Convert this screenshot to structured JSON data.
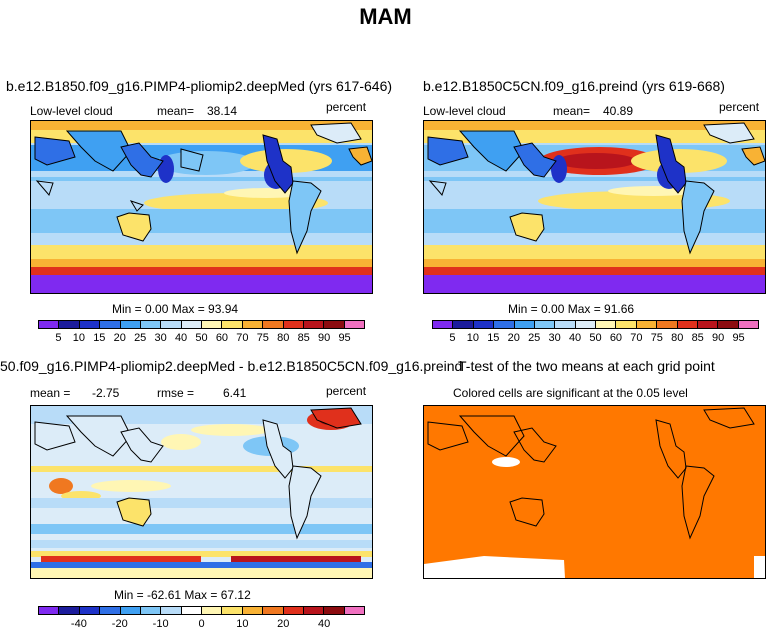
{
  "figure_title": "MAM",
  "chart_data": [
    {
      "type": "heatmap",
      "panel": "top-left",
      "title": "b.e12.B1850.f09_g16.PIMP4-pliomip2.deepMed (yrs 617-646)",
      "left_label": "Low-level cloud",
      "stat_label": "mean=",
      "stat_value": "38.14",
      "units": "percent",
      "min_max_text": "Min =    0.00 Max =   93.94",
      "min": 0.0,
      "max": 93.94,
      "mean": 38.14,
      "colorbar": {
        "levels": [
          "5",
          "10",
          "15",
          "20",
          "25",
          "30",
          "40",
          "50",
          "60",
          "70",
          "75",
          "80",
          "85",
          "90",
          "95"
        ],
        "colors": [
          "#7f2af0",
          "#1c1c9c",
          "#1e32c8",
          "#2f6fe6",
          "#3fa0f2",
          "#7ec6f6",
          "#b8dcf8",
          "#dcecf8",
          "#fff6b4",
          "#fce36a",
          "#f8b234",
          "#f07820",
          "#e0301c",
          "#b8141c",
          "#8c0c10",
          "#f070c0"
        ]
      }
    },
    {
      "type": "heatmap",
      "panel": "top-right",
      "title": "b.e12.B1850C5CN.f09_g16.preind (yrs 619-668)",
      "left_label": "Low-level cloud",
      "stat_label": "mean=",
      "stat_value": "40.89",
      "units": "percent",
      "min_max_text": "Min =    0.00 Max =   91.66",
      "min": 0.0,
      "max": 91.66,
      "mean": 40.89,
      "colorbar": {
        "levels": [
          "5",
          "10",
          "15",
          "20",
          "25",
          "30",
          "40",
          "50",
          "60",
          "70",
          "75",
          "80",
          "85",
          "90",
          "95"
        ],
        "colors": [
          "#7f2af0",
          "#1c1c9c",
          "#1e32c8",
          "#2f6fe6",
          "#3fa0f2",
          "#7ec6f6",
          "#b8dcf8",
          "#dcecf8",
          "#fff6b4",
          "#fce36a",
          "#f8b234",
          "#f07820",
          "#e0301c",
          "#b8141c",
          "#8c0c10",
          "#f070c0"
        ]
      }
    },
    {
      "type": "heatmap",
      "panel": "bottom-left",
      "title": "50.f09_g16.PIMP4-pliomip2.deepMed - b.e12.B1850C5CN.f09_g16.preind",
      "mean_label": "mean =",
      "mean_value": "-2.75",
      "rmse_label": "rmse =",
      "rmse_value": "6.41",
      "units": "percent",
      "min_max_text": "Min = -62.61 Max =   67.12",
      "min": -62.61,
      "max": 67.12,
      "colorbar": {
        "levels": [
          "-50",
          "-40",
          "-30",
          "-20",
          "-15",
          "-10",
          "-5",
          "0",
          "5",
          "10",
          "15",
          "20",
          "30",
          "40",
          "50"
        ],
        "tick_labels": [
          "-40",
          "-20",
          "-10",
          "0",
          "10",
          "20",
          "40"
        ],
        "colors": [
          "#7f2af0",
          "#1c1c9c",
          "#1e32c8",
          "#2f6fe6",
          "#3fa0f2",
          "#7ec6f6",
          "#b8dcf8",
          "#ffffff",
          "#fff6b4",
          "#fce36a",
          "#f8b234",
          "#f07820",
          "#e0301c",
          "#b8141c",
          "#8c0c10",
          "#f070c0"
        ]
      }
    },
    {
      "type": "heatmap",
      "panel": "bottom-right",
      "title": "T-test of the two means at each grid point",
      "subtitle": "Colored cells are significant at the 0.05 level",
      "fill_color": "#ff7800"
    }
  ]
}
